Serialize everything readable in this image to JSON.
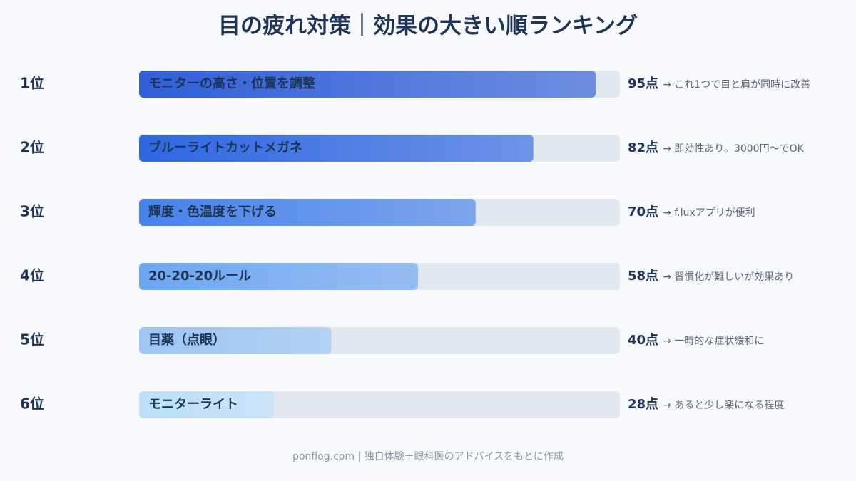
{
  "chart_data": {
    "type": "bar",
    "orientation": "horizontal",
    "title": "目の疲れ対策｜効果の大きい順ランキング",
    "ranks": [
      "1位",
      "2位",
      "3位",
      "4位",
      "5位",
      "6位"
    ],
    "categories": [
      "モニターの高さ・位置を調整",
      "ブルーライトカットメガネ",
      "輝度・色温度を下げる",
      "20-20-20ルール",
      "目薬（点眼）",
      "モニターライト"
    ],
    "values": [
      95,
      82,
      70,
      58,
      40,
      28
    ],
    "value_labels": [
      "95点",
      "82点",
      "70点",
      "58点",
      "40点",
      "28点"
    ],
    "notes": [
      "→ これ1つで目と肩が同時に改善",
      "→ 即効性あり。3000円〜でOK",
      "→ f.luxアプリが便利",
      "→ 習慣化が難しいが効果あり",
      "→ 一時的な症状緩和に",
      "→ あると少し楽になる程度"
    ],
    "colors": [
      "#2f5ed8",
      "#2e66e2",
      "#4682ea",
      "#6ca6f1",
      "#9dc5f6",
      "#bde0f9"
    ],
    "xlim": [
      0,
      100
    ],
    "source": "ponflog.com | 独自体験＋眼科医のアドバイスをもとに作成"
  }
}
